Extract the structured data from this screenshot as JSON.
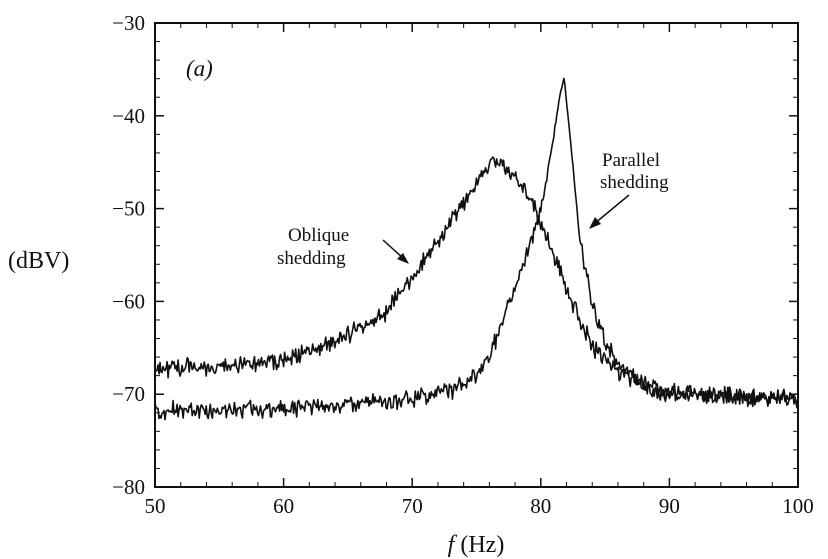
{
  "chart_data": {
    "type": "line",
    "panel_label": "(a)",
    "xlabel_italic": "f",
    "xlabel_rest": " (Hz)",
    "ylabel": "(dBV)",
    "xlim": [
      50,
      100
    ],
    "ylim": [
      -80,
      -30
    ],
    "x_ticks": [
      50,
      60,
      70,
      80,
      90,
      100
    ],
    "y_ticks": [
      -30,
      -40,
      -50,
      -60,
      -70,
      -80
    ],
    "grid": false,
    "annotations": {
      "oblique": [
        "Oblique",
        "shedding"
      ],
      "parallel": [
        "Parallel",
        "shedding"
      ]
    },
    "series": [
      {
        "key": "oblique",
        "x": [
          50,
          55,
          60,
          63,
          66,
          68,
          70,
          72,
          74,
          75,
          76,
          77,
          78,
          79,
          80,
          81,
          82,
          83,
          84,
          86,
          88,
          90,
          95,
          100
        ],
        "values": [
          -67.3,
          -67,
          -66.3,
          -65,
          -63,
          -61,
          -57.5,
          -53.5,
          -49.5,
          -47.2,
          -45.3,
          -45,
          -46.5,
          -48.7,
          -51.5,
          -55,
          -58.5,
          -62,
          -64.8,
          -67.5,
          -69.2,
          -70,
          -70.3,
          -70.5
        ]
      },
      {
        "key": "parallel",
        "x": [
          50,
          55,
          60,
          65,
          70,
          73,
          75,
          76,
          77,
          78,
          79,
          80,
          80.8,
          81.4,
          81.8,
          82.3,
          83,
          84,
          85,
          86,
          88,
          90,
          95,
          100
        ],
        "values": [
          -71.8,
          -71.7,
          -71.5,
          -71.2,
          -70.5,
          -69.5,
          -68.2,
          -66,
          -62,
          -58.5,
          -54.5,
          -50,
          -44,
          -38.5,
          -35.8,
          -42.5,
          -53,
          -60.5,
          -64.5,
          -66.8,
          -68.8,
          -69.7,
          -70.2,
          -70.6
        ]
      }
    ]
  }
}
